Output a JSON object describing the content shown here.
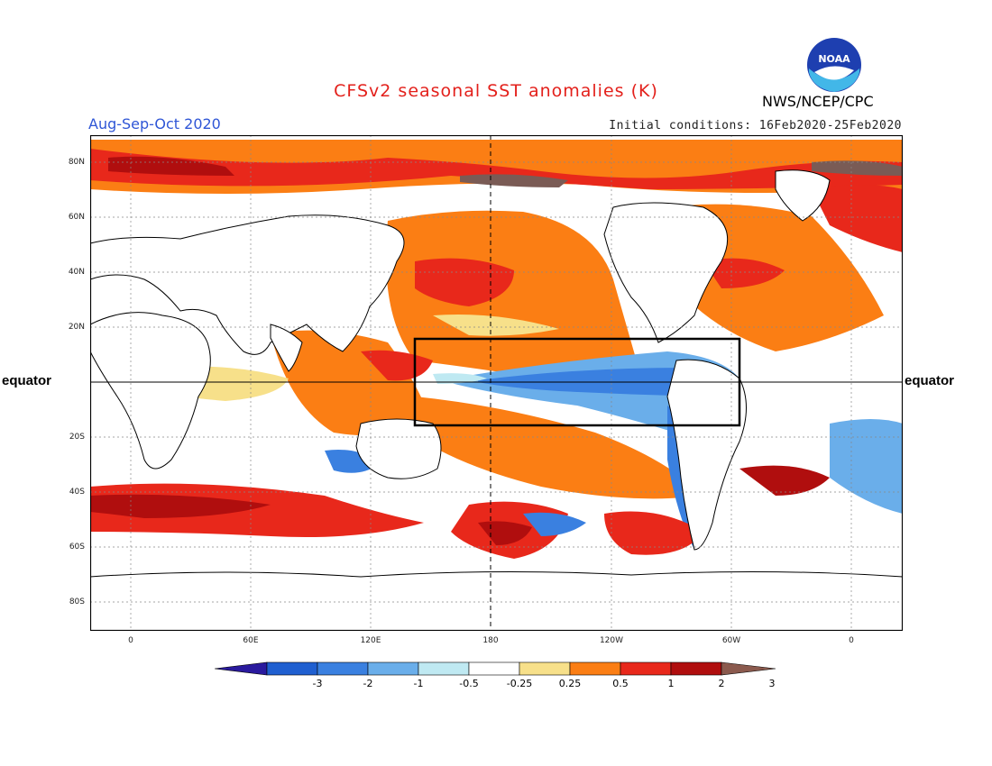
{
  "title": "CFSv2 seasonal SST anomalies (K)",
  "season": "Aug-Sep-Oct 2020",
  "initial_conditions": "Initial conditions: 16Feb2020-25Feb2020",
  "organization": "NWS/NCEP/CPC",
  "logo_text": "NOAA",
  "equator_label": "equator",
  "lat_labels": [
    "80N",
    "60N",
    "40N",
    "20N",
    "20S",
    "40S",
    "60S",
    "80S"
  ],
  "lon_labels": [
    "0",
    "60E",
    "120E",
    "180",
    "120W",
    "60W",
    "0"
  ],
  "colorbar": {
    "labels": [
      "-3",
      "-2",
      "-1",
      "-0.5",
      "-0.25",
      "0.25",
      "0.5",
      "1",
      "2",
      "3"
    ],
    "colors": [
      "#2a1a9e",
      "#1f5fd0",
      "#3a80e0",
      "#6aaeea",
      "#bfe9f2",
      "#ffffff",
      "#f7e08a",
      "#fb7e14",
      "#e8281b",
      "#b00e0e",
      "#8b5a4e"
    ]
  },
  "colors": {
    "warm_strong": "#b00e0e",
    "warm": "#e8281b",
    "warm_mild": "#fb7e14",
    "warm_weak": "#f7e08a",
    "cool_weak": "#bfe9f2",
    "cool": "#3a80e0",
    "cool_mild": "#6aaeea",
    "land": "#ffffff",
    "extreme": "#7a5b55"
  }
}
